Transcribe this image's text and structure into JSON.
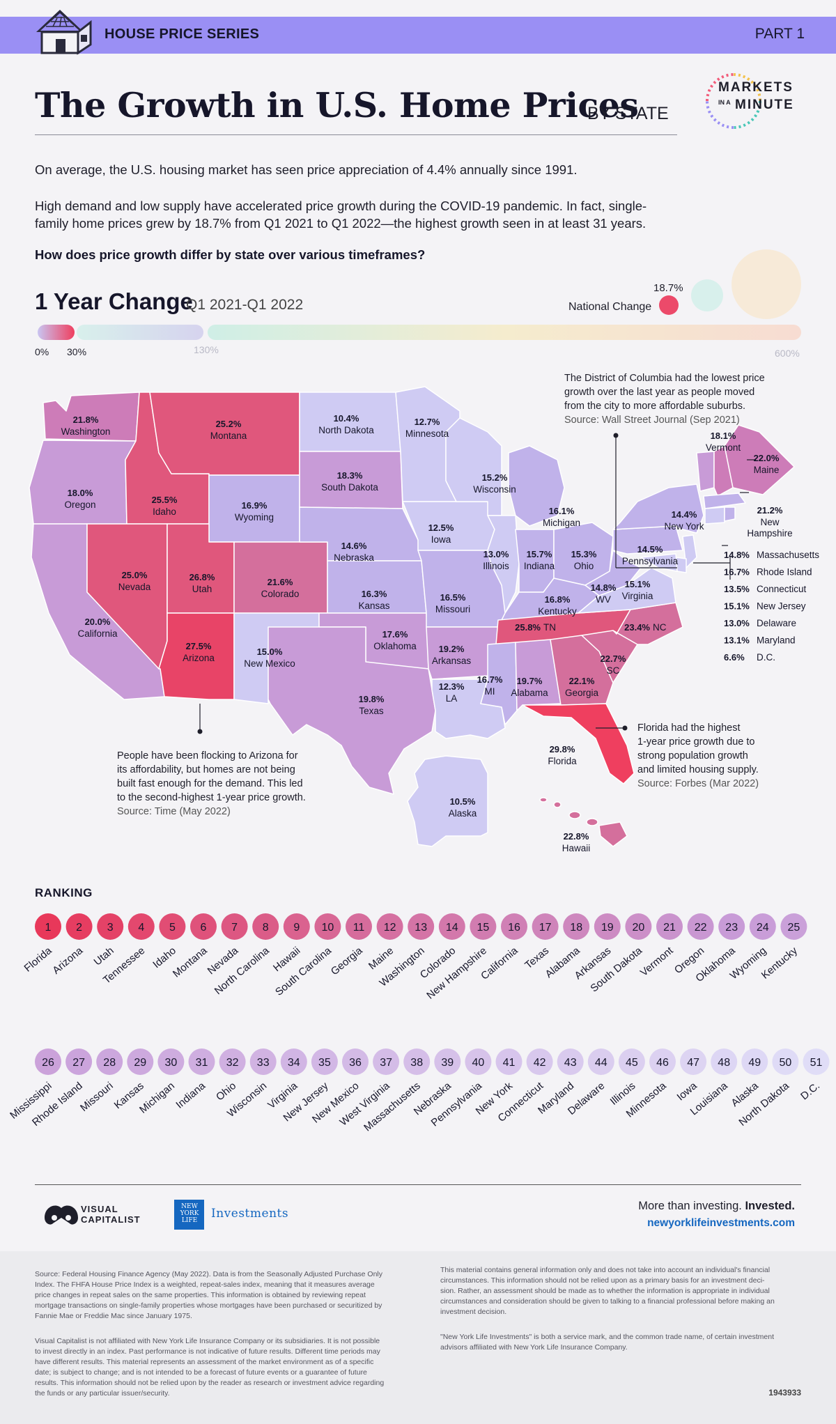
{
  "header": {
    "series": "HOUSE PRICE SERIES",
    "part": "PART 1"
  },
  "title": {
    "main": "The Growth in U.S. Home Prices",
    "by": "BY STATE"
  },
  "brand_logo_text": [
    "MARKETS",
    "IN A",
    "MINUTE"
  ],
  "intro": {
    "p1": "On average, the U.S. housing market has seen price appreciation of 4.4% annually since 1991.",
    "p2a": "High demand and low supply have accelerated price growth during the COVID-19 pandemic. In fact, single-",
    "p2b": "family home prices grew by 18.7% from Q1 2021 to Q1 2022—the highest growth seen in at least 31 years.",
    "question": "How does price growth differ by state over various timeframes?"
  },
  "change": {
    "title": "1 Year Change",
    "period": "Q1 2021-Q1 2022",
    "national_label": "National Change",
    "national_value": "18.7%"
  },
  "scale": {
    "labels": [
      "0%",
      "30%",
      "130%",
      "600%"
    ]
  },
  "colors": {
    "banner": "#9a8ff4",
    "low": "#cfcbf3",
    "mid": "#c792cf",
    "high": "#e0577c",
    "top": "#ef3f5f"
  },
  "states": [
    {
      "id": "WA",
      "name": "Washington",
      "value": "21.8%"
    },
    {
      "id": "OR",
      "name": "Oregon",
      "value": "18.0%"
    },
    {
      "id": "CA",
      "name": "California",
      "value": "20.0%"
    },
    {
      "id": "ID",
      "name": "Idaho",
      "value": "25.5%"
    },
    {
      "id": "NV",
      "name": "Nevada",
      "value": "25.0%"
    },
    {
      "id": "MT",
      "name": "Montana",
      "value": "25.2%"
    },
    {
      "id": "WY",
      "name": "Wyoming",
      "value": "16.9%"
    },
    {
      "id": "UT",
      "name": "Utah",
      "value": "26.8%"
    },
    {
      "id": "AZ",
      "name": "Arizona",
      "value": "27.5%"
    },
    {
      "id": "CO",
      "name": "Colorado",
      "value": "21.6%"
    },
    {
      "id": "NM",
      "name": "New Mexico",
      "value": "15.0%"
    },
    {
      "id": "ND",
      "name": "North Dakota",
      "value": "10.4%"
    },
    {
      "id": "SD",
      "name": "South Dakota",
      "value": "18.3%"
    },
    {
      "id": "NE",
      "name": "Nebraska",
      "value": "14.6%"
    },
    {
      "id": "KS",
      "name": "Kansas",
      "value": "16.3%"
    },
    {
      "id": "OK",
      "name": "Oklahoma",
      "value": "17.6%"
    },
    {
      "id": "TX",
      "name": "Texas",
      "value": "19.8%"
    },
    {
      "id": "MN",
      "name": "Minnesota",
      "value": "12.7%"
    },
    {
      "id": "IA",
      "name": "Iowa",
      "value": "12.5%"
    },
    {
      "id": "MO",
      "name": "Missouri",
      "value": "16.5%"
    },
    {
      "id": "AR",
      "name": "Arkansas",
      "value": "19.2%"
    },
    {
      "id": "LA",
      "name": "LA",
      "value": "12.3%"
    },
    {
      "id": "WI",
      "name": "Wisconsin",
      "value": "15.2%"
    },
    {
      "id": "IL",
      "name": "Illinois",
      "value": "13.0%"
    },
    {
      "id": "MI",
      "name": "Michigan",
      "value": "16.1%"
    },
    {
      "id": "IN",
      "name": "Indiana",
      "value": "15.7%"
    },
    {
      "id": "OH",
      "name": "Ohio",
      "value": "15.3%"
    },
    {
      "id": "KY",
      "name": "Kentucky",
      "value": "16.8%"
    },
    {
      "id": "TN",
      "name": "TN",
      "value": "25.8%"
    },
    {
      "id": "MS",
      "name": "MI",
      "value": "16.7%"
    },
    {
      "id": "AL",
      "name": "Alabama",
      "value": "19.7%"
    },
    {
      "id": "GA",
      "name": "Georgia",
      "value": "22.1%"
    },
    {
      "id": "FL",
      "name": "Florida",
      "value": "29.8%"
    },
    {
      "id": "SC",
      "name": "SC",
      "value": "22.7%"
    },
    {
      "id": "NC",
      "name": "NC",
      "value": "23.4%"
    },
    {
      "id": "VA",
      "name": "Virginia",
      "value": "15.1%"
    },
    {
      "id": "WV",
      "name": "WV",
      "value": "14.8%"
    },
    {
      "id": "PA",
      "name": "Pennsylvania",
      "value": "14.5%"
    },
    {
      "id": "NY",
      "name": "New York",
      "value": "14.4%"
    },
    {
      "id": "VT",
      "name": "Vermont",
      "value": "18.1%"
    },
    {
      "id": "NH",
      "name": "New Hampshire",
      "value": "21.2%"
    },
    {
      "id": "ME",
      "name": "Maine",
      "value": "22.0%"
    },
    {
      "id": "AK",
      "name": "Alaska",
      "value": "10.5%"
    },
    {
      "id": "HI",
      "name": "Hawaii",
      "value": "22.8%"
    }
  ],
  "northeast_list": [
    {
      "name": "Massachusetts",
      "value": "14.8%"
    },
    {
      "name": "Rhode Island",
      "value": "16.7%"
    },
    {
      "name": "Connecticut",
      "value": "13.5%"
    },
    {
      "name": "New Jersey",
      "value": "15.1%"
    },
    {
      "name": "Delaware",
      "value": "13.0%"
    },
    {
      "name": "Maryland",
      "value": "13.1%"
    },
    {
      "name": "D.C.",
      "value": "6.6%"
    }
  ],
  "annotations": {
    "dc": {
      "lines": [
        "The District of Columbia had the lowest price",
        "growth over the last year as people moved",
        "from the city to more affordable suburbs."
      ],
      "source": "Source: Wall Street Journal (Sep 2021)"
    },
    "az": {
      "lines": [
        "People have been flocking to Arizona for",
        "its affordability, but homes are not being",
        "built fast enough for the demand. This led",
        "to the second-highest 1-year price growth."
      ],
      "source": "Source: Time (May 2022)"
    },
    "fl": {
      "lines": [
        "Florida had the highest",
        "1-year price growth due to",
        "strong population growth",
        "and limited housing supply."
      ],
      "source": "Source: Forbes (Mar 2022)"
    }
  },
  "ranking": {
    "title": "RANKING",
    "states": [
      "Florida",
      "Arizona",
      "Utah",
      "Tennessee",
      "Idaho",
      "Montana",
      "Nevada",
      "North Carolina",
      "Hawaii",
      "South Carolina",
      "Georgia",
      "Maine",
      "Washington",
      "Colorado",
      "New Hampshire",
      "California",
      "Texas",
      "Alabama",
      "Arkansas",
      "South Dakota",
      "Vermont",
      "Oregon",
      "Oklahoma",
      "Wyoming",
      "Kentucky",
      "Mississippi",
      "Rhode Island",
      "Missouri",
      "Kansas",
      "Michigan",
      "Indiana",
      "Ohio",
      "Wisconsin",
      "Virginia",
      "New Jersey",
      "New Mexico",
      "West Virginia",
      "Massachusetts",
      "Nebraska",
      "Pennsylvania",
      "New York",
      "Connecticut",
      "Maryland",
      "Delaware",
      "Illinois",
      "Minnesota",
      "Iowa",
      "Louisiana",
      "Alaska",
      "North Dakota",
      "D.C."
    ]
  },
  "footer": {
    "vc": [
      "VISUAL",
      "CAPITALIST"
    ],
    "nyl_box": [
      "NEW",
      "YORK",
      "LIFE"
    ],
    "nyl_investments": "Investments",
    "tagline_a": "More than investing.",
    "tagline_b": "Invested.",
    "url": "newyorklifeinvestments.com"
  },
  "disclaimer": {
    "left1": [
      "Source: Federal Housing Finance Agency (May 2022). Data is from the Seasonally Adjusted Purchase Only",
      "Index. The FHFA House Price Index is a weighted, repeat-sales index, meaning that it measures average",
      "price changes in repeat sales on the same properties. This information is obtained by reviewing repeat",
      "mortgage transactions on single-family properties whose mortgages have been purchased or securitized by",
      "Fannie Mae or Freddie Mac since January 1975."
    ],
    "left2": [
      "Visual Capitalist is not affiliated with New York Life Insurance Company or its subsidiaries. It is not possible",
      "to invest directly in an index. Past performance is not indicative of future results. Different time periods may",
      "have different results. This material represents an assessment of the market environment as of a specific",
      "date; is subject to change; and is not intended to be a forecast of future events or a guarantee of future",
      "results. This information should not be relied upon by the reader as research or investment advice regarding",
      "the funds or any particular issuer/security."
    ],
    "right1": [
      "This material contains general information only and does not take into account an individual's financial",
      "circumstances. This information should not be relied upon as a primary basis for an investment deci-",
      "sion. Rather, an assessment should be made as to whether the information is appropriate in individual",
      "circumstances and consideration should be given to talking to a financial professional before making an",
      "investment decision."
    ],
    "right2": [
      "\"New York Life Investments\" is both a service mark, and the common trade name, of certain investment",
      "advisors affiliated with New York Life Insurance Company."
    ],
    "code": "1943933"
  }
}
